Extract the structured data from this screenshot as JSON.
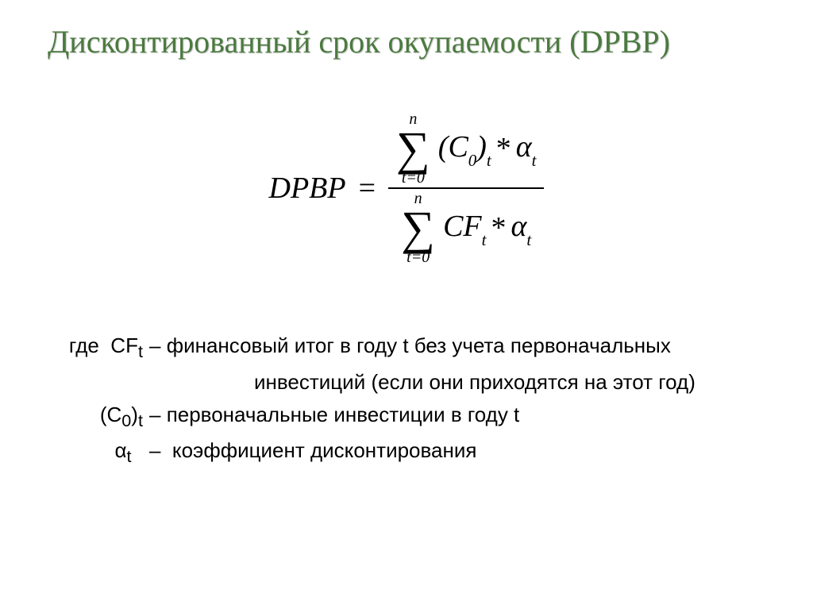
{
  "title": "Дисконтированный срок окупаемости (DPBP)",
  "formula": {
    "lhs": "DPBP",
    "eq": "=",
    "sum_upper": "n",
    "sum_lower": "t=0",
    "num_expr_a": "(C",
    "num_expr_a_sub": "0",
    "num_expr_b": ")",
    "num_expr_b_sub": "t",
    "op": "*",
    "alpha": "α",
    "alpha_sub": "t",
    "den_cf": "CF",
    "den_cf_sub": "t"
  },
  "legend": {
    "where": "где",
    "rows": [
      {
        "term_html": "CF<sub>t</sub>",
        "def": "финансовый итог в году t без учета первоначальных"
      }
    ],
    "cont": "инвестиций (если они приходятся на этот год)",
    "row2_term": "(С<sub>0</sub>)<sub>t</sub>",
    "row2_def": "первоначальные инвестиции в году t",
    "row3_term": "α<sub>t</sub>",
    "row3_def": "коэффициент дисконтирования"
  },
  "colors": {
    "title": "#4b7a3f",
    "text": "#000000",
    "bg": "#ffffff"
  }
}
